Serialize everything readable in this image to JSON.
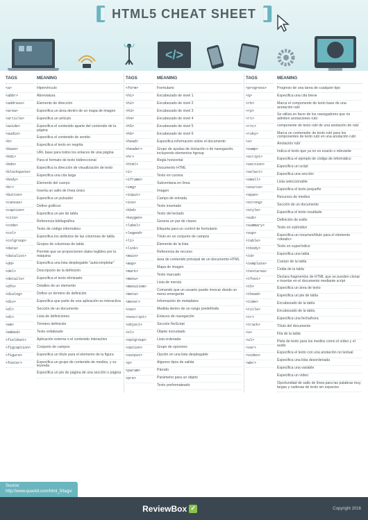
{
  "title": "HTML5 CHEAT SHEET",
  "headers": {
    "tags": "TAGS",
    "meaning": "MEANING"
  },
  "source": {
    "label": "Source:",
    "url": "http://www.quackit.com/html_5/tags/"
  },
  "footer": {
    "brand": "ReviewBox",
    "copyright": "Copyright 2016"
  },
  "colors": {
    "header_bg": "#e8f4f6",
    "accent": "#6bb5bf",
    "dark": "#3a4750",
    "text": "#4a5456"
  },
  "columns": [
    [
      {
        "t": "<a>",
        "m": "Hipervínculo"
      },
      {
        "t": "<abbr>",
        "m": "Abreviatura"
      },
      {
        "t": "<address>",
        "m": "Elemento de dirección"
      },
      {
        "t": "<area>",
        "m": "Especifica un área dentro de un mapa de imagen"
      },
      {
        "t": "<article>",
        "m": "Especifica un artículo"
      },
      {
        "t": "<aside>",
        "m": "Especifica el contenido aparte del contenido de la página"
      },
      {
        "t": "<audio>",
        "m": "Especifica el contenido de sonido"
      },
      {
        "t": "<b>",
        "m": "Especifica el texto en negrita"
      },
      {
        "t": "<base>",
        "m": "URL base para todos los enlaces de una página"
      },
      {
        "t": "<bdi>",
        "m": "Para el formato de texto bidireccional"
      },
      {
        "t": "<bdo>",
        "m": "Especifica la dirección de visualización de texto"
      },
      {
        "t": "<blockquote>",
        "m": "Especifica una cita larga"
      },
      {
        "t": "<body>",
        "m": "Elemento del cuerpo"
      },
      {
        "t": "<br>",
        "m": "Inserta un salto de línea único"
      },
      {
        "t": "<button>",
        "m": "Especifica un pulsador"
      },
      {
        "t": "<canvas>",
        "m": "Define gráficos"
      },
      {
        "t": "<caption>",
        "m": "Especifica un pie de tabla"
      },
      {
        "t": "<cite>",
        "m": "Referencia bibliográfica"
      },
      {
        "t": "<code>",
        "m": "Texto de código informático"
      },
      {
        "t": "<col>",
        "m": "Especifica los atributos de las columnas de tabla"
      },
      {
        "t": "<colgroup>",
        "m": "Grupos de columnas de tabla"
      },
      {
        "t": "<data>",
        "m": "Permite que se proporcionen datos legibles por la máquina"
      },
      {
        "t": "<datalist>",
        "m": "Especifica una lista desplegable \"autocompletar\""
      },
      {
        "t": "<dd>",
        "m": "Descripción de la definición"
      },
      {
        "t": "<del>",
        "m": "Especifica el texto eliminado"
      },
      {
        "t": "<details>",
        "m": "Detalles de un elemento"
      },
      {
        "t": "<dfn>",
        "m": "Define un término de definición"
      },
      {
        "t": "<dialog>",
        "m": "Especifica que parte de una aplicación es interactiva"
      },
      {
        "t": "<div>",
        "m": "Sección de un documento"
      },
      {
        "t": "<dl>",
        "m": "Lista de definiciones"
      },
      {
        "t": "<dt>",
        "m": "Término definición"
      },
      {
        "t": "<em>",
        "m": "Texto enfatizado"
      },
      {
        "t": "<embed>",
        "m": "Aplicación externa o el contenido interactivo"
      },
      {
        "t": "<fieldset>",
        "m": "Conjunto de campos"
      },
      {
        "t": "<figcaption>",
        "m": "Especifica un título para el elemento de la figura"
      },
      {
        "t": "<figure>",
        "m": "Especifica un grupo de contenido de medios, y su leyenda"
      },
      {
        "t": "<footer>",
        "m": "Especifica un pie de página de una sección o página"
      }
    ],
    [
      {
        "t": "<form>",
        "m": "Formulario"
      },
      {
        "t": "<h1>",
        "m": "Encabezado de nivel 1"
      },
      {
        "t": "<h2>",
        "m": "Encabezado de nivel 2"
      },
      {
        "t": "<h3>",
        "m": "Encabezado de nivel 3"
      },
      {
        "t": "<h4>",
        "m": "Encabezado de nivel 4"
      },
      {
        "t": "<h5>",
        "m": "Encabezado de nivel 5"
      },
      {
        "t": "<h6>",
        "m": "Encabezado de nivel 6"
      },
      {
        "t": "<head>",
        "m": "Especifica información sobre el documento"
      },
      {
        "t": "<header>",
        "m": "Grupo de ayudas de iniciación o de navegación, incluyendo elementos hgroup"
      },
      {
        "t": "<hr>",
        "m": "Regla horizontal"
      },
      {
        "t": "<html>",
        "m": "Documento HTML"
      },
      {
        "t": "<i>",
        "m": "Texto en cursiva"
      },
      {
        "t": "<iframe>",
        "m": "Subventana en línea"
      },
      {
        "t": "<img>",
        "m": "Imagen"
      },
      {
        "t": "<input>",
        "m": "Campo de entrada"
      },
      {
        "t": "<ins>",
        "m": "Texto insertado"
      },
      {
        "t": "<kbd>",
        "m": "Texto del teclado"
      },
      {
        "t": "<keygen>",
        "m": "Genera un par de claves"
      },
      {
        "t": "<label>",
        "m": "Etiqueta para un control de formulario"
      },
      {
        "t": "<legend>",
        "m": "Título en un conjunto de campos"
      },
      {
        "t": "<li>",
        "m": "Elemento de la lista"
      },
      {
        "t": "<link>",
        "m": "Referencia de recurso"
      },
      {
        "t": "<main>",
        "m": "área de contenido principal de un documento HTML"
      },
      {
        "t": "<map>",
        "m": "Mapa de imagen"
      },
      {
        "t": "<mark>",
        "m": "Texto marcado"
      },
      {
        "t": "<menu>",
        "m": "Lista de menús"
      },
      {
        "t": "<menuitem>",
        "m": "Comando que un usuario puede invocar desde un menú emergente"
      },
      {
        "t": "<meta>",
        "m": "Información de metadatos"
      },
      {
        "t": "<meter>",
        "m": "Medida dentro de un rango predefinido"
      },
      {
        "t": "<nav>",
        "m": "Enlaces de navegación"
      },
      {
        "t": "<noscript>",
        "m": "Sección NoScript"
      },
      {
        "t": "<object>",
        "m": "Objeto incrustado"
      },
      {
        "t": "<ol>",
        "m": "Lista ordenada"
      },
      {
        "t": "<optgroup>",
        "m": "Grupo de opciones"
      },
      {
        "t": "<option>",
        "m": "Opción en una lista desplegable"
      },
      {
        "t": "<output>",
        "m": "Algunos tipos de salida"
      },
      {
        "t": "<p>",
        "m": "Párrafo"
      },
      {
        "t": "<param>",
        "m": "Parámetro para un objeto"
      },
      {
        "t": "<pre>",
        "m": "Texto preformateado"
      }
    ],
    [
      {
        "t": "<progress>",
        "m": "Progreso de una tarea de cualquier tipo"
      },
      {
        "t": "<q>",
        "m": "Especifica una cita breve"
      },
      {
        "t": "<rb>",
        "m": "Marca el componente de texto base de una anotación rubí"
      },
      {
        "t": "<rp>",
        "m": "Se utiliza en favor de los navegadores que no admiten anotaciones rubí"
      },
      {
        "t": "<rt>",
        "m": "componente de texto rubí de una anotación de rubí"
      },
      {
        "t": "<rtc>",
        "m": "Marca un contenedor de texto rubí para los componentes de texto rubí en una anotación rubí"
      },
      {
        "t": "<ruby>",
        "m": "Anotación rubí"
      },
      {
        "t": "<s>",
        "m": "Indica el texto que ya no es exacto o relevante"
      },
      {
        "t": "<samp>",
        "m": "Especifica el ejemplo de código de informático"
      },
      {
        "t": "<script>",
        "m": "Especifica un script"
      },
      {
        "t": "<section>",
        "m": "Especifica una sección"
      },
      {
        "t": "<select>",
        "m": "Lista seleccionable"
      },
      {
        "t": "<small>",
        "m": "Especifica el texto pequeño"
      },
      {
        "t": "<source>",
        "m": "Recursos de medios"
      },
      {
        "t": "<span>",
        "m": "Sección de un documento"
      },
      {
        "t": "<strong>",
        "m": "Especifica el texto resaltado"
      },
      {
        "t": "<style>",
        "m": "Definición de estilo"
      },
      {
        "t": "<sub>",
        "m": "Texto en subíndice"
      },
      {
        "t": "<summary>",
        "m": "Especifica un resumen/título para el elemento <details>"
      },
      {
        "t": "<sup>",
        "m": "Texto en superíndice"
      },
      {
        "t": "<table>",
        "m": "Especifica una tabla"
      },
      {
        "t": "<tbody>",
        "m": "Cuerpo de la tabla"
      },
      {
        "t": "<td>",
        "m": "Celda de la tabla"
      },
      {
        "t": "<template>",
        "m": "Declara fragmentos de HTML que se pueden clonar e insertar en el documento mediante script"
      },
      {
        "t": "<textarea>",
        "m": "Especifica un área de texto"
      },
      {
        "t": "<tfoot>",
        "m": "Especifica un pie de tabla"
      },
      {
        "t": "<th>",
        "m": "Encabezado de la tabla"
      },
      {
        "t": "<thead>",
        "m": "Encabezado de la tabla"
      },
      {
        "t": "<time>",
        "m": "Especifica una fecha/hora"
      },
      {
        "t": "<title>",
        "m": "Título del documento"
      },
      {
        "t": "<tr>",
        "m": "Fila de la tabla"
      },
      {
        "t": "<track>",
        "m": "Pista de texto para los medios como el vídeo y el audio"
      },
      {
        "t": "<u>",
        "m": "Especifica el texto con una anotación no textual"
      },
      {
        "t": "<ul>",
        "m": "Especifica una lista desordenada"
      },
      {
        "t": "<var>",
        "m": "Especifica una variable"
      },
      {
        "t": "<video>",
        "m": "Especifica un vídeo"
      },
      {
        "t": "<wbr>",
        "m": "Oportunidad de salto de línea para las palabras muy largas y cadenas de texto sin espacios"
      }
    ]
  ]
}
